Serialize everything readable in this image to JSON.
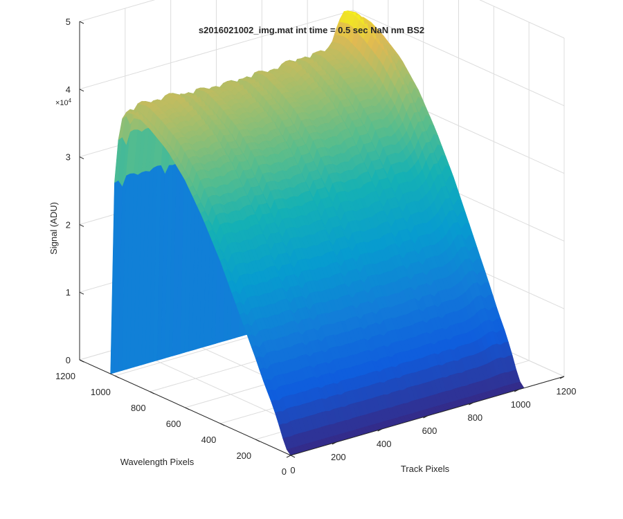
{
  "chart_data": {
    "type": "surface3d",
    "title": "s2016021002_img.mat int time = 0.5 sec  NaN nm BS2",
    "xlabel": "Track Pixels",
    "ylabel": "Wavelength Pixels",
    "zlabel": "Signal (ADU)",
    "z_exponent_label": "×10",
    "z_exponent_power": "4",
    "xlim": [
      0,
      1200
    ],
    "ylim": [
      0,
      1200
    ],
    "zlim": [
      0,
      50000
    ],
    "x_ticks": [
      "0",
      "200",
      "400",
      "600",
      "800",
      "1000",
      "1200"
    ],
    "y_ticks": [
      "0",
      "200",
      "400",
      "600",
      "800",
      "1000",
      "1200"
    ],
    "z_ticks": [
      "0",
      "1",
      "2",
      "3",
      "4",
      "5"
    ],
    "grid": true,
    "colormap": "parula",
    "x_extent": [
      0,
      1024
    ],
    "y_extent": [
      0,
      1024
    ],
    "num_tracks": 16,
    "peak_signal_along_track": [
      [
        0,
        40000
      ],
      [
        64,
        41000
      ],
      [
        128,
        40500
      ],
      [
        192,
        41000
      ],
      [
        256,
        40200
      ],
      [
        320,
        40500
      ],
      [
        384,
        40000
      ],
      [
        448,
        40300
      ],
      [
        512,
        40000
      ],
      [
        576,
        40500
      ],
      [
        640,
        40000
      ],
      [
        704,
        40800
      ],
      [
        768,
        40500
      ],
      [
        832,
        40800
      ],
      [
        896,
        41000
      ],
      [
        960,
        46000
      ],
      [
        1024,
        44000
      ]
    ],
    "spectral_profile_shape": [
      [
        0,
        0.0
      ],
      [
        30,
        0.02
      ],
      [
        60,
        0.08
      ],
      [
        100,
        0.15
      ],
      [
        150,
        0.22
      ],
      [
        200,
        0.3
      ],
      [
        300,
        0.45
      ],
      [
        400,
        0.6
      ],
      [
        500,
        0.73
      ],
      [
        600,
        0.84
      ],
      [
        700,
        0.92
      ],
      [
        800,
        0.97
      ],
      [
        880,
        1.0
      ],
      [
        950,
        0.99
      ],
      [
        1000,
        0.8
      ],
      [
        1010,
        0.3
      ],
      [
        1024,
        0.0
      ]
    ]
  }
}
